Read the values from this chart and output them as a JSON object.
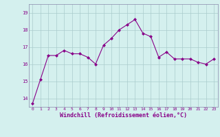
{
  "x": [
    0,
    1,
    2,
    3,
    4,
    5,
    6,
    7,
    8,
    9,
    10,
    11,
    12,
    13,
    14,
    15,
    16,
    17,
    18,
    19,
    20,
    21,
    22,
    23
  ],
  "y": [
    13.7,
    15.1,
    16.5,
    16.5,
    16.8,
    16.6,
    16.6,
    16.4,
    16.0,
    17.1,
    17.5,
    18.0,
    18.3,
    18.6,
    17.8,
    17.6,
    16.4,
    16.7,
    16.3,
    16.3,
    16.3,
    16.1,
    16.0,
    16.3
  ],
  "line_color": "#880088",
  "marker": "D",
  "marker_size": 2.0,
  "linewidth": 0.8,
  "bg_color": "#d4f0ee",
  "grid_color": "#aacccc",
  "xlabel": "Windchill (Refroidissement éolien,°C)",
  "xlabel_color": "#880088",
  "xlabel_fontsize": 6.0,
  "ylim": [
    13.5,
    19.5
  ],
  "yticks": [
    14,
    15,
    16,
    17,
    18,
    19
  ],
  "xtick_fontsize": 4.5,
  "ytick_fontsize": 5.0,
  "tick_color": "#880088",
  "spine_color": "#8888aa"
}
